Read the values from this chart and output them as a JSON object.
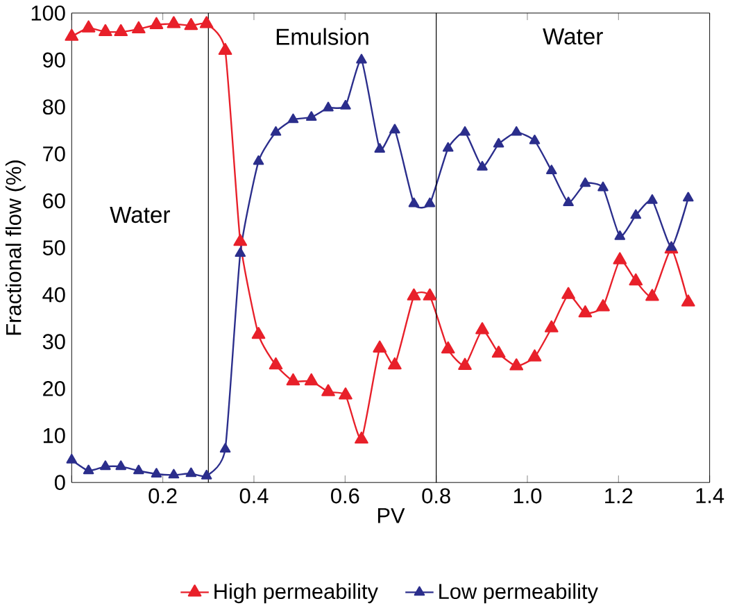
{
  "chart_data": {
    "type": "line",
    "xlabel": "PV",
    "ylabel": "Fractional flow (%)",
    "x": [
      0,
      0.037,
      0.074,
      0.108,
      0.147,
      0.186,
      0.224,
      0.262,
      0.296,
      0.337,
      0.37,
      0.41,
      0.448,
      0.486,
      0.526,
      0.563,
      0.601,
      0.636,
      0.676,
      0.709,
      0.751,
      0.786,
      0.826,
      0.863,
      0.901,
      0.937,
      0.976,
      1.016,
      1.053,
      1.09,
      1.127,
      1.166,
      1.203,
      1.238,
      1.274,
      1.316,
      1.353
    ],
    "series": [
      {
        "name": "High permeability",
        "color": "#e8202a",
        "values": [
          95,
          96.8,
          96,
          96,
          96.6,
          97.5,
          97.7,
          97.3,
          97.7,
          92,
          51.3,
          31.5,
          25,
          21.6,
          21.6,
          19.3,
          18.6,
          9.2,
          28.6,
          25,
          39.7,
          39.7,
          28.4,
          24.9,
          32.5,
          27.5,
          24.8,
          26.7,
          32.9,
          40,
          36.1,
          37.4,
          47.4,
          42.9,
          39.6,
          49.7,
          38.4
        ]
      },
      {
        "name": "Low permeability",
        "color": "#2b2e8c",
        "values": [
          4.8,
          2.5,
          3.4,
          3.4,
          2.5,
          1.8,
          1.6,
          1.9,
          1.4,
          7.1,
          48.8,
          68.4,
          74.6,
          77.3,
          77.8,
          79.8,
          80.2,
          90,
          71,
          75.1,
          59.4,
          59.4,
          71.2,
          74.6,
          67.2,
          72.1,
          74.6,
          72.8,
          66.4,
          59.6,
          63.7,
          62.8,
          52.4,
          56.9,
          60.1,
          50.1,
          60.6
        ]
      }
    ],
    "xlim": [
      0,
      1.4
    ],
    "ylim": [
      0,
      100
    ],
    "xticks": [
      {
        "value": 0,
        "label": null
      },
      0.2,
      0.4,
      0.6,
      0.8,
      {
        "value": 1.0,
        "label": "1.0"
      },
      1.2,
      1.4
    ],
    "yticks": [
      0,
      10,
      20,
      30,
      40,
      50,
      60,
      70,
      80,
      90,
      100
    ],
    "ref_lines": [
      {
        "axis": "x",
        "value": 0.3,
        "color": "#000000"
      },
      {
        "axis": "x",
        "value": 0.8,
        "color": "#000000"
      }
    ],
    "annotations": [
      "Water",
      "Emulsion",
      "Water"
    ],
    "marker": "triangle",
    "line_style": "solid",
    "legend": "bottom",
    "grid": false
  }
}
